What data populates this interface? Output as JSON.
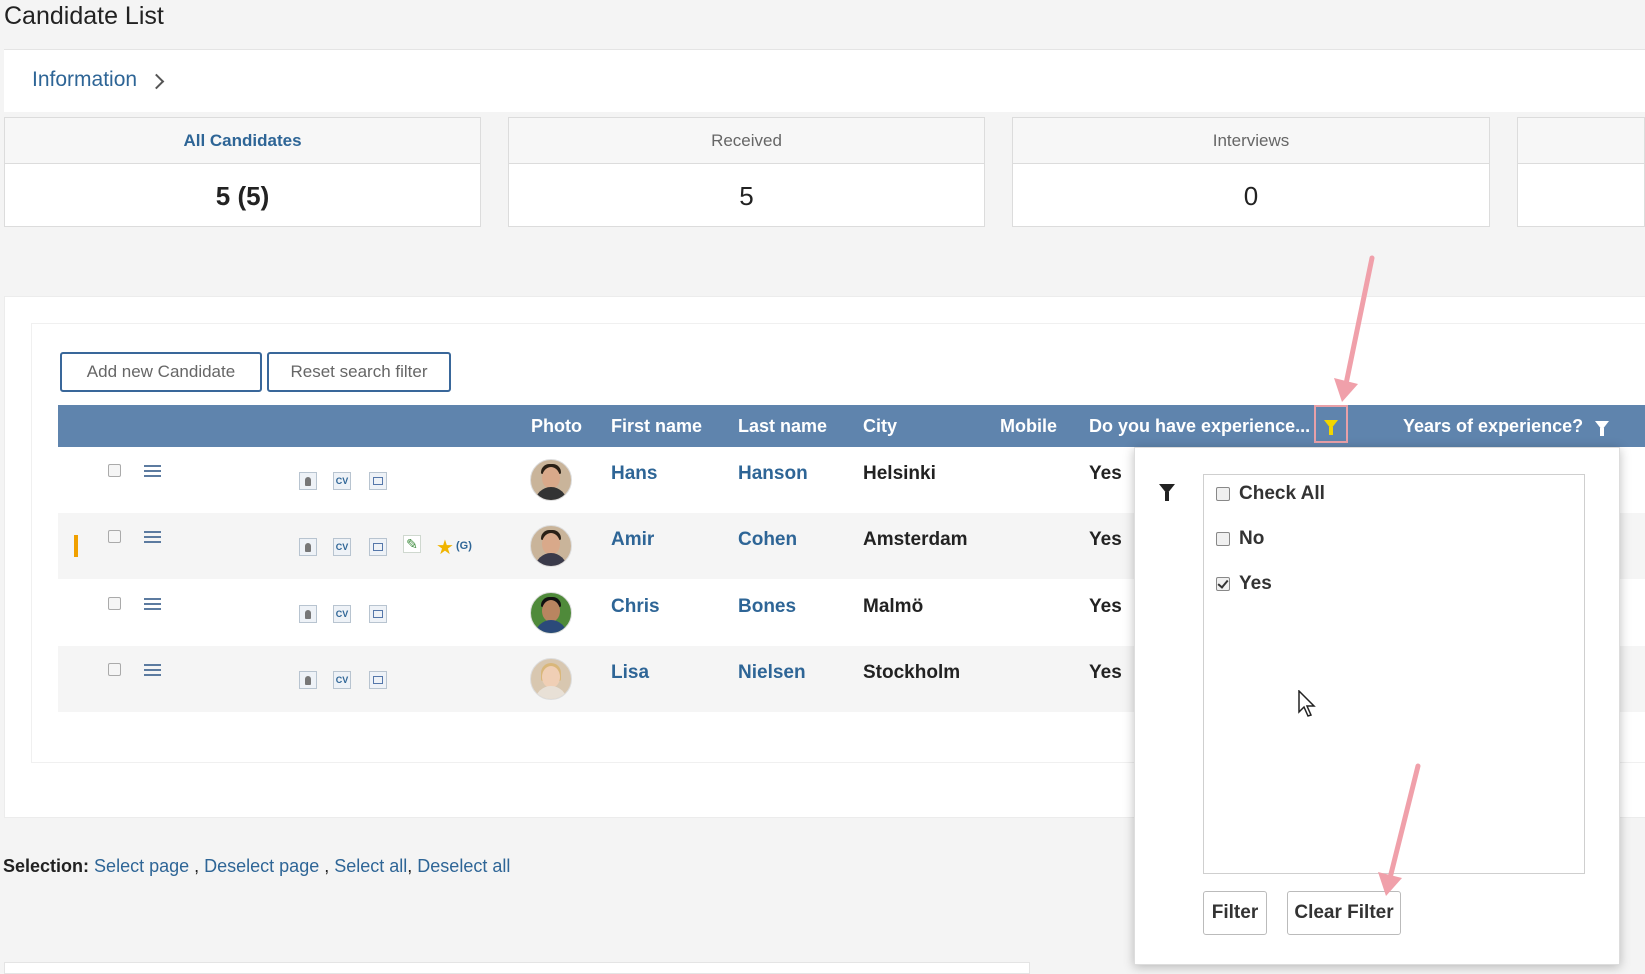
{
  "page": {
    "title": "Candidate List"
  },
  "breadcrumb": {
    "label": "Information"
  },
  "stats": [
    {
      "label": "All Candidates",
      "value": "5 (5)"
    },
    {
      "label": "Received",
      "value": "5"
    },
    {
      "label": "Interviews",
      "value": "0"
    }
  ],
  "toolbar": {
    "add_label": "Add new Candidate",
    "reset_label": "Reset search filter"
  },
  "grid": {
    "headers": {
      "photo": "Photo",
      "first_name": "First name",
      "last_name": "Last name",
      "city": "City",
      "mobile": "Mobile",
      "experience": "Do you have experience...",
      "years": "Years of experience?"
    },
    "rows": [
      {
        "first": "Hans",
        "last": "Hanson",
        "city": "Helsinki",
        "experience": "Yes"
      },
      {
        "first": "Amir",
        "last": "Cohen",
        "city": "Amsterdam",
        "experience": "Yes",
        "rating_tag": "(G)"
      },
      {
        "first": "Chris",
        "last": "Bones",
        "city": "Malmö",
        "experience": "Yes"
      },
      {
        "first": "Lisa",
        "last": "Nielsen",
        "city": "Stockholm",
        "experience": "Yes"
      }
    ]
  },
  "filter_popup": {
    "options": [
      {
        "label": "Check All",
        "checked": false
      },
      {
        "label": "No",
        "checked": false
      },
      {
        "label": "Yes",
        "checked": true
      }
    ],
    "filter_label": "Filter",
    "clear_label": "Clear Filter"
  },
  "selection": {
    "label": "Selection:",
    "select_page": "Select page",
    "deselect_page": "Deselect page",
    "select_all": "Select all",
    "deselect_all": "Deselect all"
  },
  "colors": {
    "header": "#5f84ad",
    "link": "#2e6596",
    "annotation": "#f0a0aa",
    "marker": "#f0a000"
  }
}
